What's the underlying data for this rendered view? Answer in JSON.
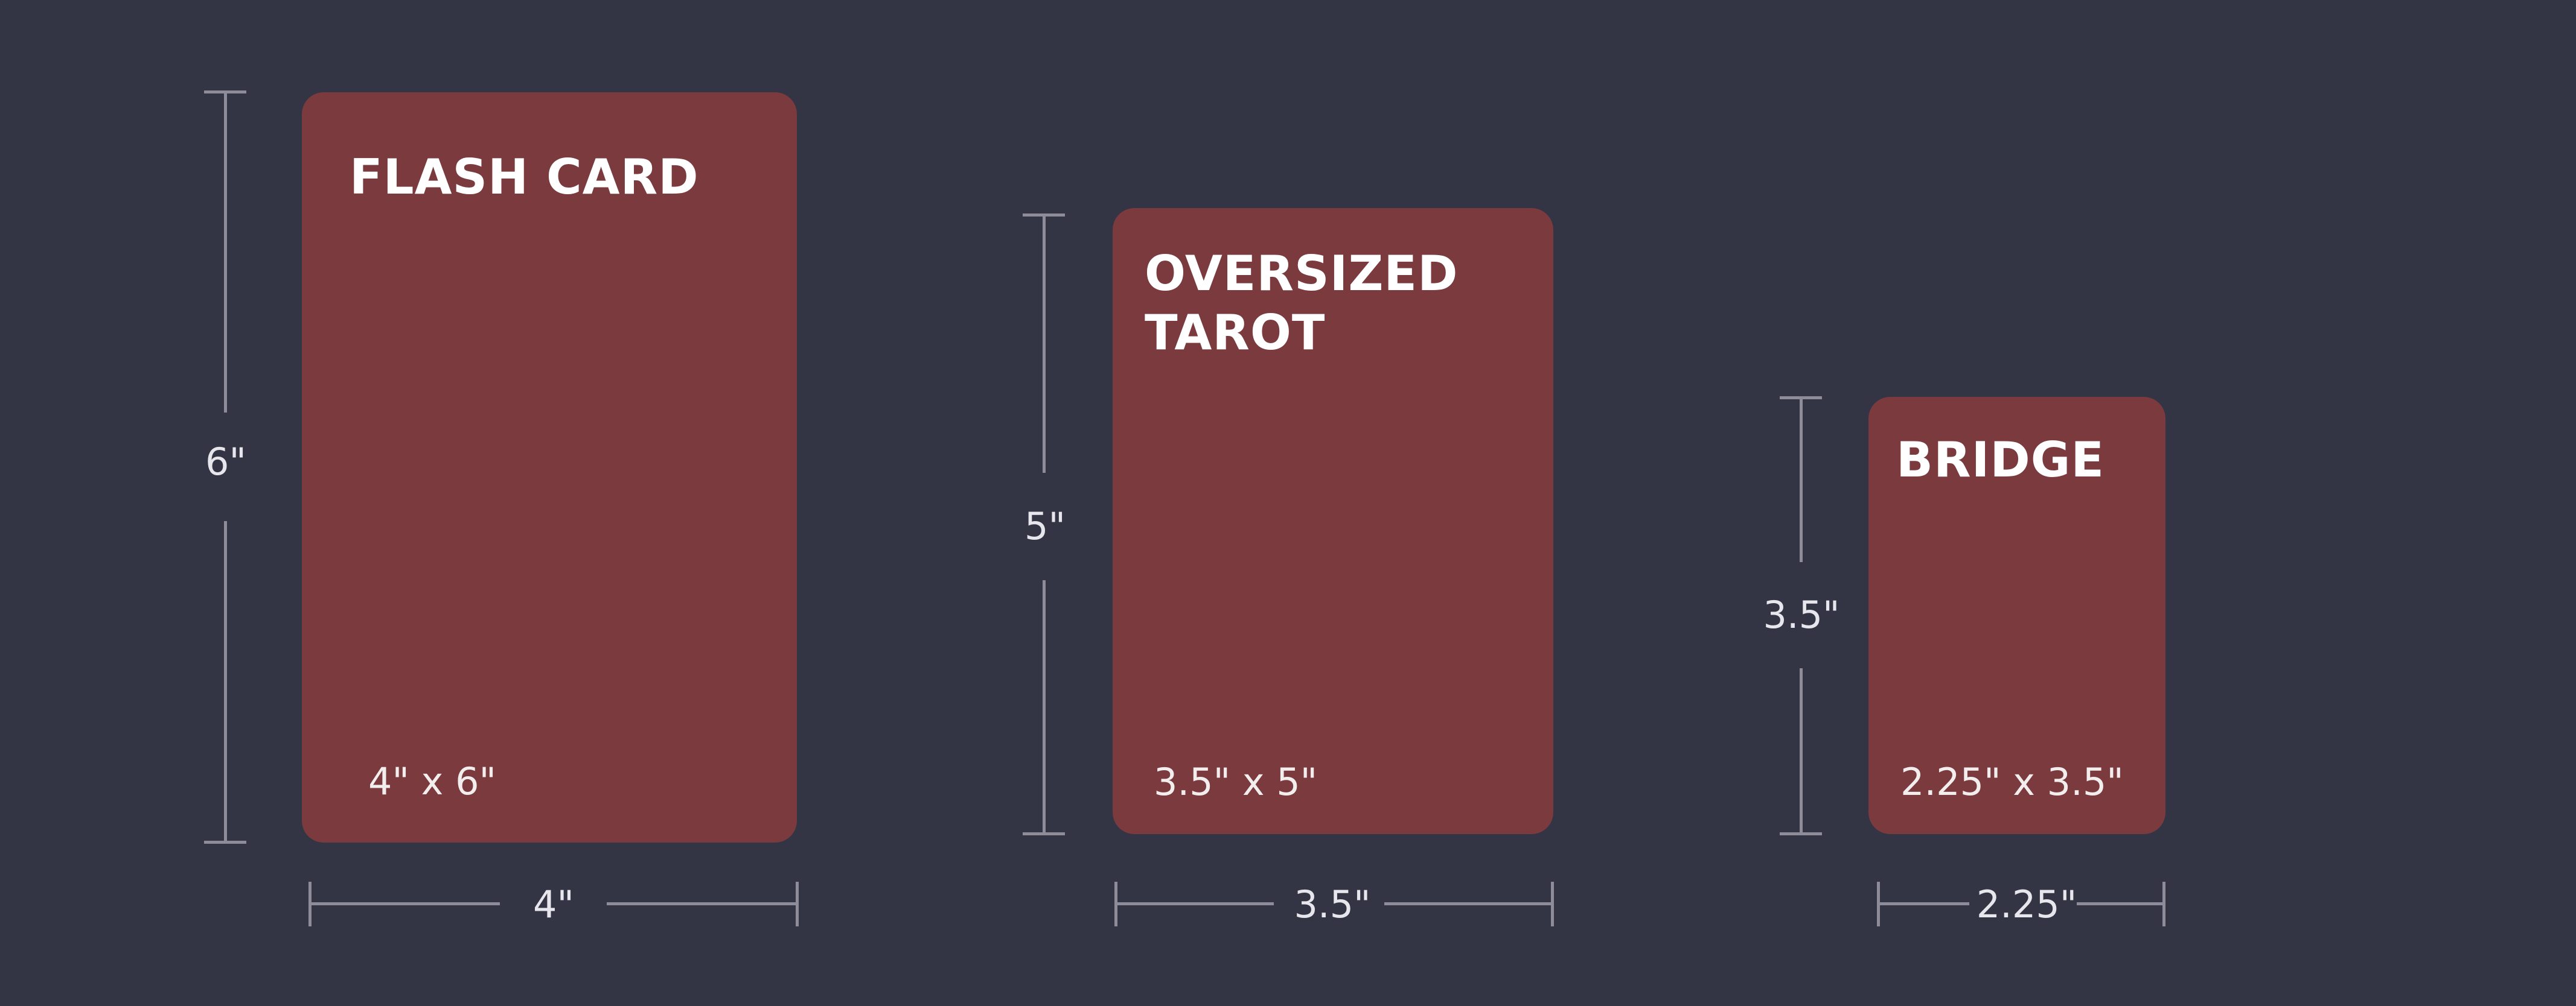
{
  "colors": {
    "background": "#333544",
    "card": "#7b3a3e",
    "dimension_line": "#8d8c98",
    "text": "#ffffff"
  },
  "cards": [
    {
      "title": "FLASH CARD",
      "size_label": "4\" x 6\"",
      "width_label": "4\"",
      "height_label": "6\""
    },
    {
      "title": "OVERSIZED\nTAROT",
      "size_label": "3.5\" x 5\"",
      "width_label": "3.5\"",
      "height_label": "5\""
    },
    {
      "title": "BRIDGE",
      "size_label": "2.25\" x 3.5\"",
      "width_label": "2.25\"",
      "height_label": "3.5\""
    }
  ]
}
